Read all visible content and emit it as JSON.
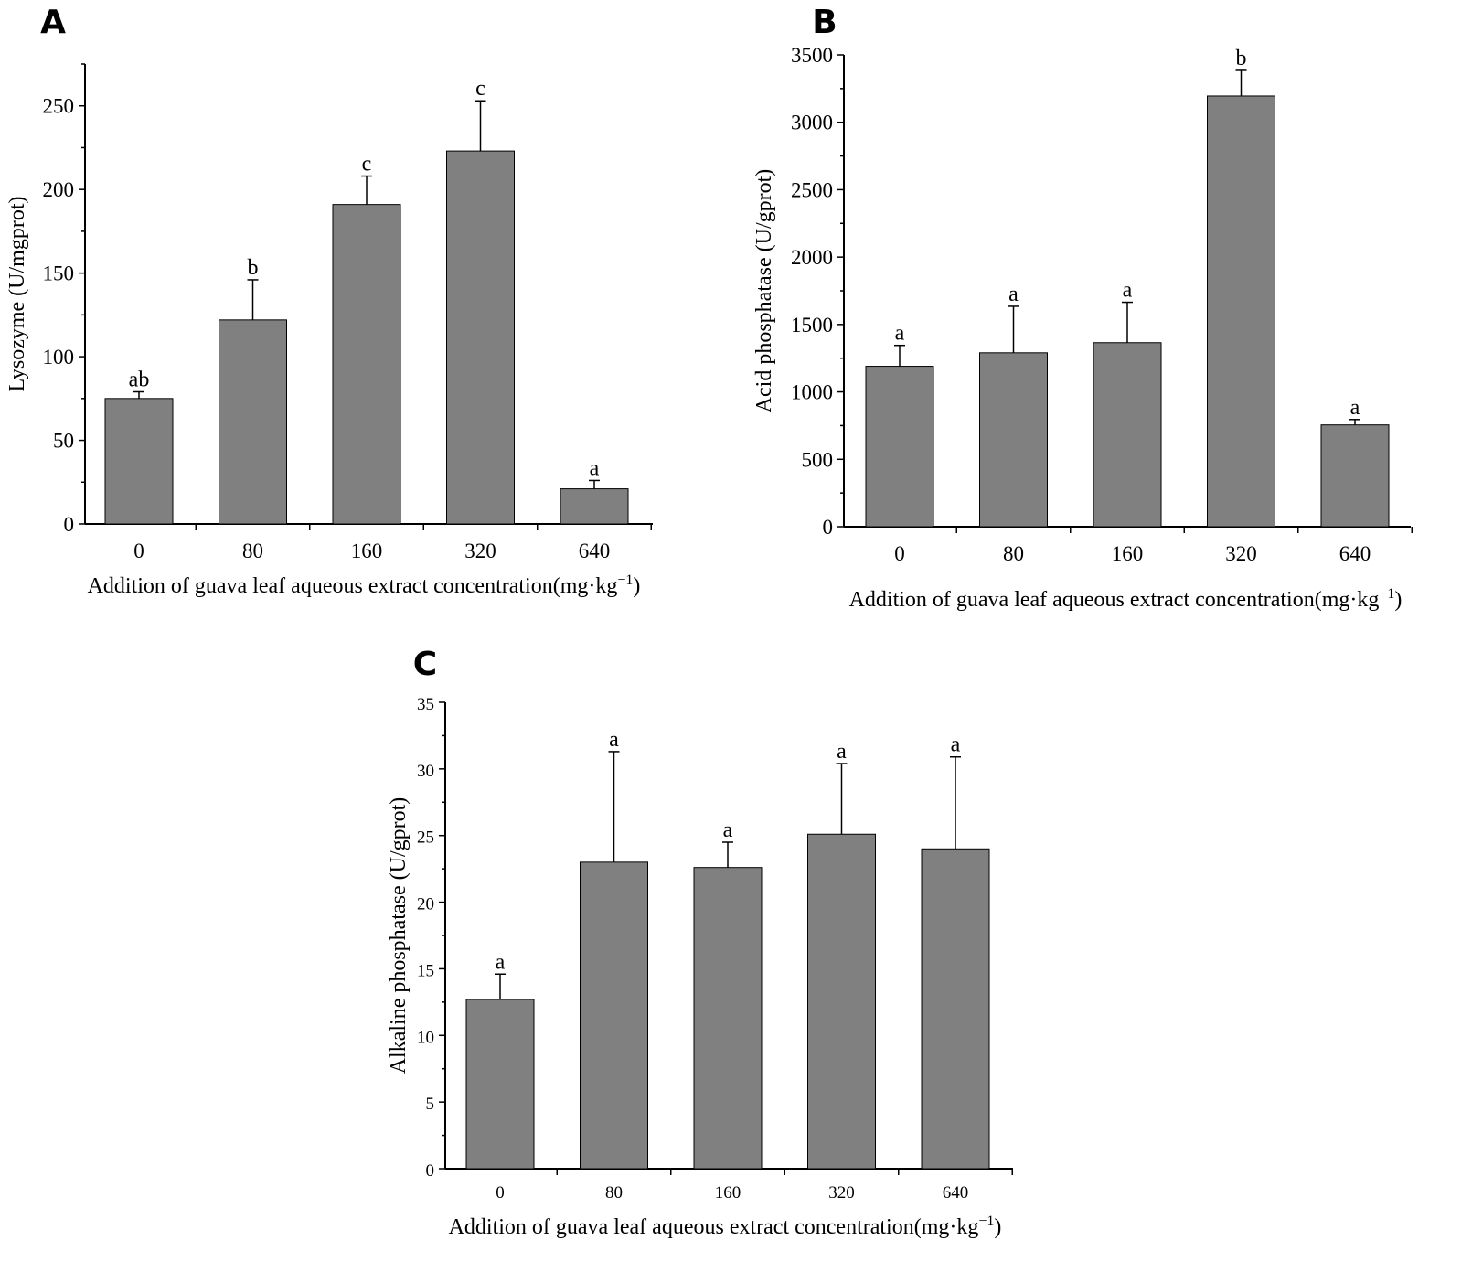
{
  "chart_data": [
    {
      "panel": "A",
      "type": "bar",
      "categories": [
        "0",
        "80",
        "160",
        "320",
        "640"
      ],
      "values": [
        75,
        122,
        191,
        223,
        21
      ],
      "errors": [
        4,
        24,
        17,
        30,
        5
      ],
      "significance": [
        "ab",
        "b",
        "c",
        "c",
        "a"
      ],
      "ylim": [
        0,
        275
      ],
      "yticks": [
        0,
        50,
        100,
        150,
        200,
        250
      ],
      "ylabel": "Lysozyme (U/mgprot)",
      "xlabel_main": "Addition of guava leaf aqueous extract concentration(mg·kg",
      "xlabel_sup": "−1",
      "xlabel_close": ")"
    },
    {
      "panel": "B",
      "type": "bar",
      "categories": [
        "0",
        "80",
        "160",
        "320",
        "640"
      ],
      "values": [
        1190,
        1290,
        1365,
        3195,
        755
      ],
      "errors": [
        155,
        345,
        300,
        190,
        40
      ],
      "significance": [
        "a",
        "a",
        "a",
        "b",
        "a"
      ],
      "ylim": [
        0,
        3500
      ],
      "yticks": [
        0,
        500,
        1000,
        1500,
        2000,
        2500,
        3000,
        3500
      ],
      "ylabel": "Acid phosphatase (U/gprot)",
      "xlabel_main": "Addition of guava leaf aqueous extract concentration(mg·kg",
      "xlabel_sup": "−1",
      "xlabel_close": ")"
    },
    {
      "panel": "C",
      "type": "bar",
      "categories": [
        "0",
        "80",
        "160",
        "320",
        "640"
      ],
      "values": [
        12.7,
        23.0,
        22.6,
        25.1,
        24.0
      ],
      "errors": [
        1.9,
        8.3,
        1.9,
        5.3,
        6.9
      ],
      "significance": [
        "a",
        "a",
        "a",
        "a",
        "a"
      ],
      "ylim": [
        0,
        35
      ],
      "yticks": [
        0,
        5,
        10,
        15,
        20,
        25,
        30,
        35
      ],
      "ylabel": "Alkaline phosphatase (U/gprot)",
      "xlabel_main": "Addition of guava leaf aqueous extract concentration(mg·kg",
      "xlabel_sup": "−1",
      "xlabel_close": ")"
    }
  ]
}
